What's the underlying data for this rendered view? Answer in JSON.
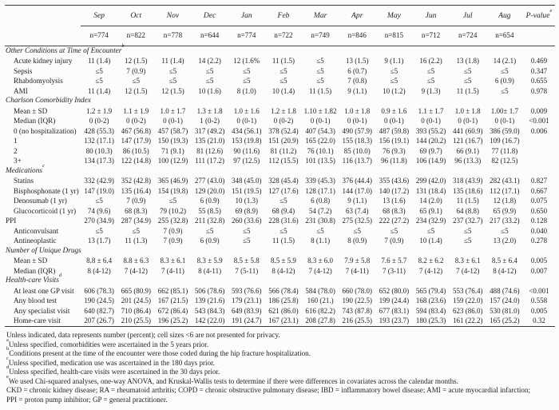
{
  "table": {
    "columns": {
      "months": [
        "Sep",
        "Oct",
        "Nov",
        "Dec",
        "Jan",
        "Feb",
        "Mar",
        "Apr",
        "May",
        "Jun",
        "Jul",
        "Aug"
      ],
      "n": [
        "n=774",
        "n=822",
        "n=778",
        "n=644",
        "n=774",
        "n=722",
        "n=749",
        "n=846",
        "n=815",
        "n=712",
        "n=724",
        "n=654"
      ],
      "pvalue": {
        "label": "P-value",
        "sup": "e"
      }
    },
    "sections": [
      {
        "title": "Other Conditions at Time of Encounter",
        "sup": "b",
        "rows": [
          {
            "label": "Acute kidney injury",
            "values": [
              "11 (1.4)",
              "12 (1.5)",
              "11 (1.4)",
              "14 (2.2)",
              "12 (1.6%",
              "11 (1.5)",
              "≤5",
              "13 (1.5)",
              "9 (1.1)",
              "16 (2.2)",
              "13 (1.8)",
              "14 (2.1)"
            ],
            "p": "0.469"
          },
          {
            "label": "Sepsis",
            "values": [
              "≤5",
              "7 (0.9)",
              "≤5",
              "≤5",
              "≤5",
              "≤5",
              "≤5",
              "6 (0.7)",
              "≤5",
              "≤5",
              "≤5",
              "≤5"
            ],
            "p": "0.347"
          },
          {
            "label": "Rhabdomyolysis",
            "values": [
              "≤5",
              "≤5",
              "≤5",
              "≤5",
              "≤5",
              "≤5",
              "≤5",
              "7 (0.8)",
              "≤5",
              "≤5",
              "≤5",
              "6 (0.9)"
            ],
            "p": "0.655"
          },
          {
            "label": "AMI",
            "values": [
              "11 (1.4)",
              "12 (1.5)",
              "12 (1.5)",
              "10 (1.6)",
              "8 (1.0)",
              "10 (1.4)",
              "11 (1.5)",
              "9 (1.1)",
              "10 (1.2)",
              "9 (1.3)",
              "11 (1.5)",
              "≤5"
            ],
            "p": "0.978"
          }
        ]
      },
      {
        "title": "Charlson Comorbidity Index",
        "sup": "",
        "rows": [
          {
            "label": "Mean ± SD",
            "values": [
              "1.2 ± 1.9",
              "1.1 ± 1.9",
              "1.0 ± 1.7",
              "1.3 ± 1.8",
              "1.0 ± 1.6",
              "1.2 ± 1.8",
              "1.10 ± 1.82",
              "1.0 ± 1.8",
              "0.9 ± 1.6",
              "1.1 ± 1.7",
              "1.0 ± 1.8",
              "1.00± 1.7"
            ],
            "p": "0.009"
          },
          {
            "label": "Median (IQR)",
            "values": [
              "0 (0-2)",
              "0 (0-2)",
              "0 (0-1)",
              "1 (0-2)",
              "0 (0-1)",
              "0 (0-2)",
              "0 (0-1)",
              "0 (0-1)",
              "0 (0-1)",
              "0 (0-1)",
              "0 (0-1)",
              "0 (0-1)"
            ],
            "p": "<0.001"
          },
          {
            "label": "0 (no hospitalization)",
            "values": [
              "428 (55.3)",
              "467 (56.8)",
              "457 (58.7)",
              "317 (49.2)",
              "434 (56.1)",
              "378 (52.4)",
              "407 (54.3)",
              "490 (57.9)",
              "487 (59.8)",
              "393 (55.2)",
              "441 (60.9)",
              "386 (59.0)"
            ],
            "p": "0.006"
          },
          {
            "label": "1",
            "values": [
              "132 (17.1)",
              "147 (17.9)",
              "150 (19.3)",
              "135 (21.0)",
              "153 (19.8)",
              "151 (20.9)",
              "165 (22.0)",
              "155 (18.3)",
              "156 (19.1)",
              "144 (20.2)",
              "121 (16.7)",
              "109 (16.7)"
            ],
            "p": ""
          },
          {
            "label": "2",
            "values": [
              "80 (10.3)",
              "86 (10.5)",
              "71 (9.1)",
              "81 (12.6)",
              "90 (11.6)",
              "81 (11.2)",
              "76 (10.1)",
              "85 (10.0)",
              "76 (9.3)",
              "69 (9.7)",
              "66 (9.1)",
              "77 (11.8)"
            ],
            "p": ""
          },
          {
            "label": "3+",
            "values": [
              "134 (17.3)",
              "122 (14.8)",
              "100 (12.9)",
              "111 (17.2)",
              "97 (12.5)",
              "112 (15.5)",
              "101 (13.5)",
              "116 (13.7)",
              "96 (11.8)",
              "106 (14.9)",
              "96 (13.3)",
              "82 (12.5)"
            ],
            "p": ""
          }
        ]
      },
      {
        "title": "Medications",
        "sup": "c",
        "rows": [
          {
            "label": "Statins",
            "values": [
              "332 (42.9)",
              "352 (42.8)",
              "365 (46.9)",
              "277 (43.0)",
              "348 (45.0)",
              "328 (45.4)",
              "339 (45.3)",
              "376 (44.4)",
              "355 (43.6)",
              "299 (42.0)",
              "318 (43.9)",
              "282 (43.1)"
            ],
            "p": "0.827"
          },
          {
            "label": "Bisphosphonate (1 yr)",
            "values": [
              "147 (19.0)",
              "135 (16.4)",
              "154 (19.8)",
              "129 (20.0)",
              "151 (19.5)",
              "127 (17.6)",
              "128 (17.1)",
              "144 (17.0)",
              "140 (17.2)",
              "131 (18.4)",
              "135 (18.6)",
              "112 (17.1)"
            ],
            "p": "0.667"
          },
          {
            "label": "Denosumab (1 yr)",
            "values": [
              "≤5",
              "7 (0.9)",
              "≤5",
              "6 (0.9)",
              "10 (1.3)",
              "≤5",
              "6 (0.8)",
              "9 (1.1)",
              "13 (1.6)",
              "14 (2.0)",
              "11 (1.5)",
              "12 (1.8)"
            ],
            "p": "0.075"
          },
          {
            "label": "Glucocorticoid (1 yr)",
            "values": [
              "74 (9.6)",
              "68 (8.3)",
              "79 (10.2)",
              "55 (8.5)",
              "69 (8.9)",
              "68 (9.4)",
              "54 (7.2)",
              "63 (7.4)",
              "68 (8.3)",
              "65 (9.1)",
              "64 (8.8)",
              "65 (9.9)"
            ],
            "p": "0.650"
          },
          {
            "label": "PPI",
            "flush": true,
            "values": [
              "270 (34.9)",
              "287 (34.9)",
              "255 (32.8)",
              "211 (32.8)",
              "260 (33.6)",
              "228 (31.6)",
              "231 (30.8)",
              "275 (32.5)",
              "222 (27.2)",
              "234 (32.9)",
              "237 (32.7)",
              "217 (33.2)"
            ],
            "p": "0.128"
          },
          {
            "label": "Anticonvulsant",
            "values": [
              "≤5",
              "≤5",
              "7 (0.9)",
              "≤5",
              "≤5",
              "≤5",
              "≤5",
              "≤5",
              "≤5",
              "≤5",
              "≤5",
              "≤5"
            ],
            "p": "0.040"
          },
          {
            "label": "Antineoplastic",
            "values": [
              "13 (1.7)",
              "11 (1.3)",
              "7 (0.9)",
              "6 (0.9)",
              "≤5",
              "11 (1.5)",
              "8 (1.1)",
              "8 (0.9)",
              "7 (0.9)",
              "10 (1.4)",
              "≤5",
              "13 (2.0)"
            ],
            "p": "0.278"
          }
        ]
      },
      {
        "title": "Number of Unique Drugs",
        "sup": "",
        "rows": [
          {
            "label": "Mean ±  SD",
            "values": [
              "8.8 ± 6.4",
              "8.8 ± 6.3",
              "8.3 ± 6.1",
              "8.3 ± 5.9",
              "8.5 ± 5.8",
              "8.5 ± 5.9",
              "8.3 ± 6.0",
              "7.9 ± 5.8",
              "7.6 ± 5.7",
              "8.2 ± 6.2",
              "8.3 ± 6.1",
              "8.5 ± 6.4"
            ],
            "p": "0.005"
          },
          {
            "label": "Median (IQR)",
            "values": [
              "8 (4-12)",
              "7 (4-12)",
              "7 (4-11)",
              "8 (4-11)",
              "7 (5-11)",
              "8 (4-12)",
              "7 (4-12)",
              "7 (4-11)",
              "7 (3-11)",
              "7 (4-12)",
              "7 (4-12)",
              "8 (4-12)"
            ],
            "p": "0.007"
          }
        ]
      },
      {
        "title": "Health-care Visits",
        "sup": "d",
        "rows": [
          {
            "label": "At least one GP visit",
            "values": [
              "606 (78.3)",
              "665 (80.9)",
              "662 (85.1)",
              "506 (78.6)",
              "593 (76.6)",
              "566 (78.4)",
              "584 (78.0)",
              "660 (78.0)",
              "652 (80.0)",
              "565 (79.4)",
              "553 (76.4)",
              "488 (74.6)"
            ],
            "p": "<0.001"
          },
          {
            "label": "Any blood test",
            "values": [
              "190 (24.5)",
              "201 (24.5)",
              "167 (21.5)",
              "139 (21.6)",
              "179 (23.1)",
              "186 (25.8)",
              "160 (21.)",
              "190 (22.5)",
              "199 (24.4)",
              "168 (23.6)",
              "159 (22.0)",
              "157 (24.0)"
            ],
            "p": "0.558"
          },
          {
            "label": "Any specialist visit",
            "values": [
              "640 (82.7)",
              "710 (86.4)",
              "672 (86.4)",
              "543 (84.3)",
              "649 (83.9)",
              "621 (86.0)",
              "616 (82.2)",
              "743 (87.8)",
              "677 (83.1)",
              "594 (83.4)",
              "623 (86.0)",
              "530 (81.0)"
            ],
            "p": "0.005"
          },
          {
            "label": "Home-care visit",
            "values": [
              "207 (26.7)",
              "210 (25.5)",
              "196 (25.2)",
              "142 (22.0)",
              "191 (24.7)",
              "167 (23.1)",
              "208 (27.8)",
              "216 (25.5)",
              "193 (23.7)",
              "180 (25.3)",
              "161 (22.2)",
              "165 (25.2)"
            ],
            "p": "0.32"
          }
        ]
      }
    ]
  },
  "footnotes": [
    {
      "sup": "",
      "text": "Unless indicated, data represents number (percent); cell sizes <6 are not presented for privacy."
    },
    {
      "sup": "a",
      "text": "Unless specified, comorbidities were ascertained in the 5 years prior."
    },
    {
      "sup": "b",
      "text": "Conditions present at the time of the encounter were those coded during the hip fracture hospitalization."
    },
    {
      "sup": "c",
      "text": "Unless specified, medication use was ascertained in the 180 days prior."
    },
    {
      "sup": "d",
      "text": "Unless specified, health-care visits were ascertained in the 30 days prior."
    },
    {
      "sup": "e",
      "text": "We used Chi-squared analyses, one-way ANOVA, and Kruskal-Wallis tests to determine if there were differences in covariates across the calendar months."
    },
    {
      "sup": "",
      "text": "CKD = chronic kidney disease; RA = rheumatoid arthritis; COPD = chronic obstructive pulmonary disease; IBD = inflammatory bowel disease; AMI = acute myocardial infarction;"
    },
    {
      "sup": "",
      "text": "PPI = proton pump inhibitor; GP = general practitioner."
    }
  ],
  "colors": {
    "ink": "#1f1f1f",
    "rule": "#3a3a3a",
    "paper": "#fcfcfc"
  }
}
